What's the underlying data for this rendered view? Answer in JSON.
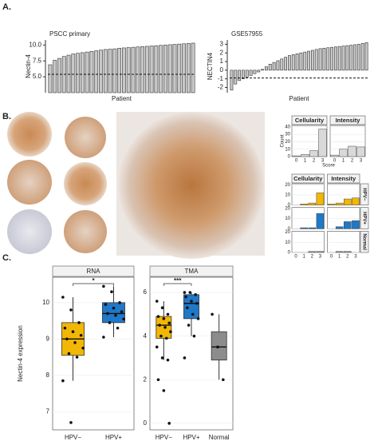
{
  "panel_labels": [
    "A.",
    "B.",
    "C."
  ],
  "chart_data": [
    {
      "type": "bar",
      "title": "PSCC primary",
      "ylabel": "Nectin-4",
      "xlabel": "Patient",
      "color": "#c8c8c8",
      "values": [
        6.9,
        7.6,
        7.9,
        8.2,
        8.4,
        8.6,
        8.7,
        8.8,
        8.9,
        9.0,
        9.1,
        9.2,
        9.3,
        9.35,
        9.4,
        9.5,
        9.55,
        9.6,
        9.65,
        9.7,
        9.75,
        9.8,
        9.85,
        9.9,
        9.95,
        10.0,
        10.05,
        10.1,
        10.15,
        10.2,
        10.25,
        10.3
      ],
      "ylim": [
        2.5,
        10.8
      ],
      "yticks": [
        {
          "value": 5,
          "label": "5.0"
        },
        {
          "value": 7.5,
          "label": "7.5"
        },
        {
          "value": 10,
          "label": "10.0"
        }
      ],
      "hline": 5.4
    },
    {
      "type": "bar",
      "title": "GSE57955",
      "ylabel": "NECTIN4",
      "xlabel": "Patient",
      "color": "#c8c8c8",
      "values": [
        -2.3,
        -1.6,
        -1.2,
        -1.0,
        -0.8,
        -0.6,
        -0.4,
        -0.2,
        0.1,
        0.4,
        0.7,
        0.9,
        1.1,
        1.3,
        1.5,
        1.7,
        1.8,
        1.9,
        2.0,
        2.1,
        2.2,
        2.3,
        2.4,
        2.5,
        2.55,
        2.6,
        2.65,
        2.7,
        2.75,
        2.8,
        2.85,
        2.9,
        2.95,
        3.0,
        3.1,
        3.2
      ],
      "ylim": [
        -2.6,
        3.5
      ],
      "yticks": [
        -2,
        -1,
        0,
        1,
        2,
        3
      ],
      "hline": -0.9
    },
    {
      "type": "facet_bar",
      "columns": [
        "Cellularity",
        "Intensity"
      ],
      "xlabel": "Score",
      "ylabel": "Count",
      "xticks": [
        0,
        1,
        2,
        3
      ],
      "ylim": [
        0,
        42
      ],
      "yticks": [
        0,
        10,
        20,
        30,
        40
      ],
      "rows": [
        {
          "color": "#d9d9d9",
          "values": [
            [
              1,
              3,
              8,
              37
            ],
            [
              2,
              10,
              14,
              13
            ]
          ]
        }
      ]
    },
    {
      "type": "facet_bar",
      "columns": [
        "Cellularity",
        "Intensity"
      ],
      "xticks": [
        0,
        1,
        2,
        3
      ],
      "ylim": [
        0,
        21
      ],
      "yticks": [
        0,
        10,
        20
      ],
      "rows": [
        {
          "name": "HPV−",
          "color": "#f2b705",
          "values": [
            [
              0,
              1,
              2,
              12
            ],
            [
              1,
              2,
              6,
              7
            ]
          ]
        },
        {
          "name": "HPV+",
          "color": "#1f78c8",
          "values": [
            [
              0,
              1,
              1,
              15
            ],
            [
              0,
              2,
              7,
              8
            ]
          ]
        },
        {
          "name": "Normal",
          "color": "#9a9a9a",
          "values": [
            [
              0,
              0,
              1,
              1
            ],
            [
              0,
              1,
              1,
              0
            ]
          ]
        }
      ]
    },
    {
      "type": "box",
      "title": "RNA",
      "ylabel": "Nectin-4 expression",
      "categories": [
        "HPV−",
        "HPV+"
      ],
      "colors": [
        "#f2b705",
        "#1f78c8"
      ],
      "ylim": [
        6.5,
        10.7
      ],
      "yticks": [
        7,
        8,
        9,
        10
      ],
      "signif": "*",
      "boxes": [
        {
          "whislo": 7.85,
          "q1": 8.55,
          "med": 9.0,
          "q3": 9.45,
          "whishi": 10.15
        },
        {
          "whislo": 9.05,
          "q1": 9.45,
          "med": 9.7,
          "q3": 10.0,
          "whishi": 10.45
        }
      ],
      "points": [
        [
          10.15,
          9.8,
          9.45,
          9.3,
          9.2,
          9.1,
          9.0,
          8.9,
          8.75,
          8.6,
          8.5,
          7.85,
          6.7
        ],
        [
          10.45,
          10.3,
          10.0,
          9.95,
          9.85,
          9.75,
          9.7,
          9.65,
          9.55,
          9.45,
          9.3,
          9.05
        ]
      ]
    },
    {
      "type": "box",
      "title": "TMA",
      "categories": [
        "HPV−",
        "HPV+",
        "Normal"
      ],
      "colors": [
        "#f2b705",
        "#1f78c8",
        "#8c8c8c"
      ],
      "ylim": [
        -0.3,
        6.7
      ],
      "yticks": [
        0,
        2,
        4,
        6
      ],
      "signif": "***",
      "boxes": [
        {
          "whislo": 2.9,
          "q1": 3.9,
          "med": 4.5,
          "q3": 4.9,
          "whishi": 5.6
        },
        {
          "whislo": 4.0,
          "q1": 4.8,
          "med": 5.5,
          "q3": 5.9,
          "whishi": 6.0
        },
        {
          "whislo": 2.0,
          "q1": 2.9,
          "med": 3.5,
          "q3": 4.2,
          "whishi": 5.0
        }
      ],
      "points": [
        [
          5.6,
          5.3,
          5.0,
          4.9,
          4.8,
          4.6,
          4.5,
          4.4,
          4.2,
          4.0,
          3.9,
          3.5,
          3.0,
          2.9,
          2.0,
          1.5,
          0.0
        ],
        [
          6.0,
          6.0,
          5.9,
          5.8,
          5.6,
          5.5,
          5.3,
          5.0,
          4.8,
          4.5,
          4.0,
          3.0
        ],
        [
          5.0,
          3.5,
          2.0
        ]
      ]
    }
  ]
}
